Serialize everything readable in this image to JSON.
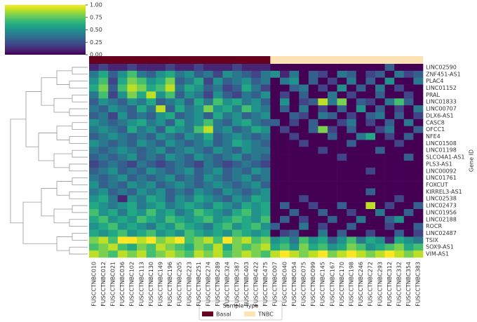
{
  "chart_data": {
    "type": "heatmap",
    "ylabel": "Gene ID",
    "categories": [
      "FUSCCTNBC010",
      "FUSCCTNBC012",
      "FUSCCTNBC021",
      "FUSCCTNBC036",
      "FUSCCTNBC102",
      "FUSCCTNBC113",
      "FUSCCTNBC130",
      "FUSCCTNBC149",
      "FUSCCTNBC196",
      "FUSCCTNBC205",
      "FUSCCTNBC223",
      "FUSCCTNBC251",
      "FUSCCTNBC274",
      "FUSCCTNBC289",
      "FUSCCTNBC324",
      "FUSCCTNBC387",
      "FUSCCTNBC403",
      "FUSCCTNBC422",
      "FUSCCTNBC475",
      "FUSCCTNBC007",
      "FUSCCTNBC040",
      "FUSCCTNBC054",
      "FUSCCTNBC075",
      "FUSCCTNBC099",
      "FUSCCTNBC145",
      "FUSCCTNBC167",
      "FUSCCTNBC170",
      "FUSCCTNBC198",
      "FUSCCTNBC246",
      "FUSCCTNBC272",
      "FUSCCTNBC293",
      "FUSCCTNBC312",
      "FUSCCTNBC332",
      "FUSCCTNBC354",
      "FUSCCTNBC383"
    ],
    "rows": [
      "LINC02590",
      "ZNF451-AS1",
      "PLAC4",
      "LINC01152",
      "PRAL",
      "LINC01833",
      "LINC00707",
      "DLX6-AS1",
      "CASC8",
      "OFCC1",
      "NFE4",
      "LINC01508",
      "LINC01198",
      "SLCO4A1-AS1",
      "PLS3-AS1",
      "LINC00092",
      "LINC01761",
      "FOXCUT",
      "KIRREL3-AS1",
      "LINC02538",
      "LINC02473",
      "LINC01956",
      "LINC02188",
      "ROCR",
      "LINC02487",
      "TSIX",
      "SOX9-AS1",
      "VIM-AS1"
    ],
    "values": [
      [
        0.1,
        0.2,
        0.1,
        0.1,
        0.2,
        0.1,
        0.1,
        0.1,
        0.2,
        0.1,
        0.1,
        0.2,
        0.1,
        0.1,
        0.1,
        0.2,
        0.1,
        0.1,
        0.1,
        0,
        0,
        0,
        0,
        0,
        0,
        0,
        0,
        0,
        0,
        0,
        0,
        0.3,
        0,
        0,
        0
      ],
      [
        0.4,
        0.6,
        0.3,
        0.5,
        0.7,
        0.4,
        0.3,
        0.5,
        0.6,
        0.4,
        0.5,
        0.3,
        0.4,
        0.2,
        0.5,
        0.4,
        0.3,
        0.2,
        0.4,
        0.5,
        0.1,
        0.4,
        0,
        0.3,
        0.2,
        0,
        0.4,
        0.3,
        0,
        0.2,
        0.3,
        0,
        0.4,
        0.2,
        0.3
      ],
      [
        0.5,
        0.7,
        0.2,
        0.6,
        0.8,
        0.7,
        0.5,
        0.6,
        0.8,
        0.3,
        0.4,
        0.6,
        0.2,
        0.5,
        0.3,
        0.4,
        0.5,
        0.3,
        0.4,
        0,
        0.4,
        0.5,
        0,
        0.3,
        0,
        0.2,
        0,
        0.4,
        0,
        0.3,
        0,
        0.5,
        0,
        0,
        0.4
      ],
      [
        0.6,
        0.8,
        0.3,
        0.7,
        0.9,
        0.8,
        0.6,
        0.7,
        0.9,
        0.4,
        0.6,
        0.5,
        0.3,
        0.4,
        0.2,
        0.3,
        0.6,
        0.4,
        0.2,
        0,
        0,
        0.3,
        0.4,
        0,
        0.2,
        0,
        0.5,
        0,
        0.3,
        0,
        0.4,
        0,
        0.2,
        0,
        0
      ],
      [
        0.4,
        0.7,
        0.2,
        0.5,
        0.8,
        0.6,
        0.9,
        0.5,
        0.7,
        0.3,
        0.5,
        0.4,
        0.2,
        0.5,
        0.3,
        0.2,
        0.4,
        0.3,
        0.5,
        0,
        0.2,
        0,
        0.3,
        0,
        0,
        0.4,
        0,
        0.2,
        0,
        0,
        0.3,
        0,
        0,
        0.2,
        0
      ],
      [
        0.3,
        0.5,
        0.4,
        0.3,
        0.5,
        0.4,
        0.6,
        0.3,
        0.4,
        0.5,
        0.3,
        0.6,
        0.4,
        0.7,
        0.5,
        0.6,
        0.4,
        0.5,
        0.3,
        0,
        0.5,
        0,
        0.2,
        0.3,
        0.9,
        0.4,
        0.8,
        0,
        0.3,
        0.2,
        0,
        0.4,
        0.7,
        0.3,
        0
      ],
      [
        0.4,
        0.3,
        0.5,
        0.4,
        0.3,
        0.6,
        0.4,
        0.9,
        0.3,
        0.6,
        0.4,
        0.5,
        0.8,
        0.5,
        0.6,
        0.4,
        0.7,
        0.5,
        0.4,
        0,
        0.3,
        0,
        0.4,
        0,
        0.2,
        0,
        0.3,
        0,
        0.5,
        0,
        0.3,
        0,
        0.2,
        0,
        0.4
      ],
      [
        0.3,
        0.4,
        0.2,
        0.5,
        0.3,
        0.4,
        0.3,
        0.5,
        0.6,
        0.3,
        0.4,
        0.5,
        0.3,
        0.6,
        0.4,
        0.5,
        0.3,
        0.4,
        0.5,
        0,
        0,
        0.3,
        0.2,
        0,
        0.4,
        0.3,
        0,
        0.2,
        0,
        0.3,
        0.4,
        0,
        0.3,
        0,
        0.2
      ],
      [
        0.5,
        0.4,
        0.3,
        0.4,
        0.5,
        0.6,
        0.4,
        0.5,
        0.3,
        0.6,
        0.4,
        0.5,
        0.7,
        0.4,
        0.3,
        0.5,
        0.6,
        0.4,
        0.3,
        0.3,
        0,
        0.2,
        0,
        0.3,
        0,
        0,
        0.2,
        0.4,
        0,
        0.2,
        0,
        0.3,
        0,
        0.4,
        0
      ],
      [
        0.4,
        0.5,
        0.4,
        0.3,
        0.6,
        0.4,
        0.5,
        0.3,
        0.6,
        0.5,
        0.4,
        0.7,
        0.9,
        0.4,
        0.5,
        0.3,
        0.4,
        0.6,
        0.5,
        0,
        0.2,
        0,
        0,
        0.3,
        0.8,
        0.2,
        0,
        0.3,
        0,
        0,
        0.2,
        0.4,
        0,
        0,
        0.3
      ],
      [
        0.3,
        0.4,
        0.5,
        0.4,
        0.3,
        0.4,
        0.3,
        0.5,
        0.4,
        0.3,
        0.5,
        0.4,
        0.6,
        0.3,
        0.4,
        0.5,
        0.4,
        0.3,
        0.4,
        0,
        0,
        0.2,
        0,
        0,
        0,
        0.3,
        0,
        0,
        0.4,
        0.6,
        0,
        0.2,
        0,
        0.3,
        0
      ],
      [
        0.5,
        0.4,
        0.3,
        0.4,
        0.3,
        0.5,
        0.4,
        0.3,
        0.5,
        0.4,
        0.3,
        0.4,
        0.5,
        0.3,
        0.4,
        0.6,
        0.5,
        0.4,
        0.3,
        0,
        0,
        0,
        0.2,
        0,
        0,
        0,
        0,
        0.3,
        0,
        0,
        0,
        0,
        0.2,
        0,
        0
      ],
      [
        0.4,
        0.3,
        0.4,
        0.5,
        0.4,
        0.3,
        0.4,
        0.5,
        0.3,
        0.4,
        0.5,
        0.4,
        0.3,
        0.5,
        0.4,
        0.3,
        0.5,
        0.4,
        0.4,
        0,
        0,
        0,
        0,
        0,
        0.2,
        0,
        0,
        0,
        0,
        0,
        0.3,
        0,
        0,
        0,
        0
      ],
      [
        0.3,
        0.4,
        0.3,
        0.4,
        0.5,
        0.3,
        0.4,
        0.3,
        0.5,
        0.4,
        0.3,
        0.5,
        0.4,
        0.3,
        0.4,
        0.5,
        0.3,
        0.4,
        0.3,
        0,
        0,
        0,
        0,
        0,
        0,
        0,
        0.2,
        0,
        0,
        0,
        0,
        0,
        0,
        0.3,
        0
      ],
      [
        0.2,
        0.3,
        0.4,
        0.3,
        0.2,
        0.4,
        0.3,
        0.2,
        0.3,
        0.4,
        0.3,
        0.2,
        0.4,
        0.3,
        0.2,
        0.3,
        0.4,
        0.3,
        0.2,
        0,
        0,
        0,
        0,
        0,
        0,
        0,
        0,
        0,
        0,
        0,
        0,
        0,
        0,
        0,
        0
      ],
      [
        0.3,
        0.4,
        0.5,
        0.3,
        0.4,
        0.3,
        0.5,
        0.4,
        0.3,
        0.4,
        0.5,
        0.3,
        0.4,
        0.5,
        0.3,
        0.4,
        0.3,
        0.5,
        0.4,
        0,
        0,
        0,
        0,
        0,
        0,
        0,
        0,
        0,
        0,
        0.2,
        0,
        0,
        0,
        0,
        0
      ],
      [
        0.4,
        0.3,
        0.4,
        0.5,
        0.3,
        0.4,
        0.3,
        0.4,
        0.5,
        0.3,
        0.4,
        0.3,
        0.5,
        0.4,
        0.3,
        0.4,
        0.5,
        0.3,
        0.4,
        0,
        0,
        0,
        0,
        0,
        0,
        0,
        0,
        0,
        0,
        0,
        0,
        0,
        0,
        0,
        0
      ],
      [
        0.5,
        0.3,
        0.4,
        0.3,
        0.5,
        0.4,
        0.5,
        0.3,
        0.4,
        0.5,
        0.4,
        0.3,
        0.4,
        0.5,
        0.4,
        0.3,
        0.4,
        0.5,
        0.3,
        0,
        0,
        0,
        0,
        0,
        0,
        0,
        0,
        0,
        0,
        0,
        0,
        0,
        0,
        0,
        0
      ],
      [
        0.4,
        0.5,
        0.3,
        0.4,
        0.3,
        0.5,
        0.4,
        0.5,
        0.3,
        0.4,
        0.3,
        0.5,
        0.4,
        0.3,
        0.5,
        0.4,
        0.3,
        0.4,
        0.5,
        0,
        0,
        0,
        0,
        0,
        0,
        0,
        0,
        0,
        0,
        0.3,
        0,
        0,
        0,
        0,
        0
      ],
      [
        0.5,
        0.6,
        0.4,
        0.1,
        0.5,
        0.4,
        0.6,
        0.5,
        0.3,
        0.5,
        0.4,
        0.6,
        0.5,
        0.4,
        0.3,
        0.5,
        0.4,
        0.6,
        0.5,
        0,
        0,
        0,
        0.2,
        0,
        0,
        0,
        0,
        0,
        0,
        0,
        0,
        0,
        0.2,
        0,
        0
      ],
      [
        0.6,
        0.5,
        0.4,
        0.5,
        0.6,
        0.4,
        0.5,
        0.6,
        0.4,
        0.5,
        0.6,
        0.5,
        0.4,
        0.6,
        0.5,
        0.4,
        0.6,
        0.5,
        0.6,
        0,
        0.3,
        0,
        0,
        0.2,
        0,
        0,
        0.3,
        0,
        0,
        0.9,
        0,
        0.2,
        0,
        0,
        0.3
      ],
      [
        0.7,
        0.5,
        0.6,
        0.4,
        0.6,
        0.5,
        0.7,
        0.5,
        0.6,
        0.4,
        0.5,
        0.7,
        0.6,
        0.5,
        0.4,
        0.6,
        0.7,
        0.5,
        0.6,
        0,
        0,
        0.3,
        0,
        0,
        0.3,
        0,
        0,
        0.2,
        0,
        0,
        0.4,
        0,
        0,
        0.3,
        0
      ],
      [
        0.6,
        0.7,
        0.5,
        0.6,
        0.5,
        0.7,
        0.6,
        0.5,
        0.7,
        0.6,
        0.5,
        0.6,
        0.7,
        0.5,
        0.6,
        0.7,
        0.6,
        0.5,
        0.7,
        0,
        0.3,
        0,
        0.2,
        0,
        0,
        0.3,
        0,
        0,
        0.4,
        0,
        0,
        0.3,
        0.5,
        0,
        0
      ],
      [
        0.5,
        0.6,
        0.7,
        0.5,
        0.6,
        0.5,
        0.4,
        0.6,
        0.5,
        0.7,
        0.6,
        0.5,
        0.4,
        0.6,
        0.7,
        0.5,
        0.6,
        0.7,
        0.5,
        0.3,
        0,
        0,
        0.4,
        0,
        0.2,
        0,
        0,
        0.3,
        0,
        0,
        0,
        0.2,
        0,
        0,
        0.3
      ],
      [
        0.6,
        0.5,
        0.6,
        0.7,
        0.5,
        0.6,
        0.7,
        0.5,
        0.6,
        0.5,
        0.7,
        0.6,
        0.5,
        0.6,
        0.5,
        0.7,
        0.6,
        0.5,
        0.6,
        0,
        0.2,
        0.3,
        0,
        0,
        0.4,
        0,
        0.3,
        0,
        0,
        0.2,
        0,
        0,
        0.3,
        0,
        0.2
      ],
      [
        0.8,
        0.9,
        0.7,
        1.0,
        1.0,
        0.9,
        1.0,
        0.8,
        0.9,
        1.0,
        0.7,
        0.8,
        0.9,
        0.7,
        1.0,
        0.8,
        0.9,
        0.7,
        0.8,
        0.5,
        0.6,
        0.4,
        0.7,
        0.5,
        0.6,
        0.3,
        0.5,
        0.7,
        0.4,
        0.6,
        0.5,
        0.1,
        0.6,
        0.5,
        0.4
      ],
      [
        0.7,
        0.8,
        0.9,
        0.7,
        0.6,
        0.8,
        0.7,
        0.9,
        0.8,
        0.7,
        0.6,
        0.8,
        0.7,
        0.9,
        0.6,
        0.8,
        0.7,
        0.8,
        0.9,
        0.6,
        0.7,
        0.5,
        0.8,
        0.6,
        0.7,
        0.5,
        0.6,
        0.8,
        0.7,
        0.5,
        0.6,
        0.7,
        0.8,
        0.6,
        0.7
      ],
      [
        0.9,
        0.8,
        0.7,
        0.9,
        0.8,
        0.9,
        0.7,
        0.8,
        0.9,
        0.8,
        0.7,
        0.9,
        0.8,
        0.9,
        0.7,
        0.8,
        0.9,
        0.8,
        0.7,
        0.9,
        1.0,
        0.9,
        0.8,
        0.9,
        1.0,
        0.8,
        0.9,
        1.0,
        0.9,
        0.8,
        0.9,
        1.0,
        0.9,
        0.8,
        0.9
      ]
    ],
    "zlim": [
      0,
      1
    ],
    "colorbar_ticks": [
      {
        "value": 0,
        "label": "0.00"
      },
      {
        "value": 0.25,
        "label": "0.25"
      },
      {
        "value": 0.5,
        "label": "0.50"
      },
      {
        "value": 0.75,
        "label": "0.75"
      },
      {
        "value": 1,
        "label": "1.00"
      }
    ],
    "colormap": [
      "#440154",
      "#482475",
      "#414487",
      "#355f8d",
      "#2a788e",
      "#21918c",
      "#22a884",
      "#44bf70",
      "#7ad151",
      "#bddf26",
      "#fde725"
    ],
    "annotation": {
      "title": "Sample Type",
      "groups": [
        {
          "name": "Basal",
          "color": "#67001f",
          "count": 19
        },
        {
          "name": "TNBC",
          "color": "#fde3b3",
          "count": 16
        }
      ]
    }
  }
}
